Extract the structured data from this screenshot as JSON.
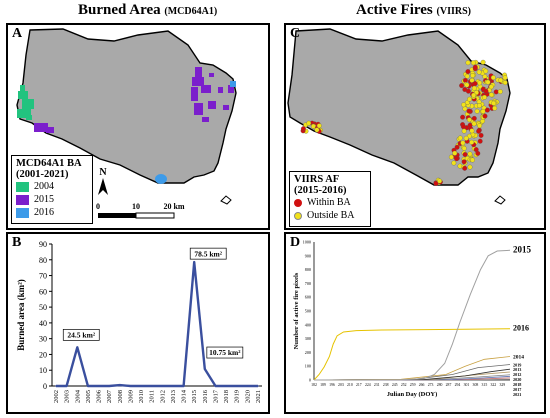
{
  "titles": {
    "left_main": "Burned Area",
    "left_sub": "(MCD64A1)",
    "right_main": "Active Fires",
    "right_sub": "(VIIRS)"
  },
  "panels": {
    "a": "A",
    "b": "B",
    "c": "C",
    "d": "D"
  },
  "legend_ba": {
    "title_line1": "MCD64A1 BA",
    "title_line2": "(2001-2021)",
    "items": [
      {
        "label": "2004",
        "color": "#22c37f"
      },
      {
        "label": "2015",
        "color": "#7b1fcc"
      },
      {
        "label": "2016",
        "color": "#3d9be9"
      }
    ]
  },
  "legend_af": {
    "title_line1": "VIIRS AF",
    "title_line2": "(2015-2016)",
    "items": [
      {
        "label": "Within BA",
        "color": "#d01010"
      },
      {
        "label": "Outside BA",
        "color": "#f2e21a"
      }
    ]
  },
  "map_extras": {
    "north": "N",
    "scale_labels": [
      "0",
      "10",
      "20 km"
    ],
    "land_color": "#a9a9a9"
  },
  "chart_data": [
    {
      "type": "line",
      "panel": "B",
      "ylabel": "Burned area (km²)",
      "xlabel": "",
      "categories": [
        "2002",
        "2003",
        "2004",
        "2005",
        "2006",
        "2007",
        "2008",
        "2009",
        "2010",
        "2011",
        "2012",
        "2013",
        "2014",
        "2015",
        "2016",
        "2017",
        "2018",
        "2019",
        "2020",
        "2021"
      ],
      "values": [
        0,
        0,
        24.5,
        0,
        0,
        0,
        0.6,
        0,
        0,
        0,
        0,
        0,
        0,
        78.5,
        10.75,
        0,
        0,
        0,
        0,
        0
      ],
      "ylim": [
        0,
        90
      ],
      "yticks": [
        0,
        10,
        20,
        30,
        40,
        50,
        60,
        70,
        80,
        90
      ],
      "annotations": [
        {
          "category": "2004",
          "text": "24.5 km²"
        },
        {
          "category": "2015",
          "text": "78.5 km²"
        },
        {
          "category": "2016",
          "text": "10.75 km²"
        }
      ],
      "grid": false,
      "line_color": "#3a4f9e"
    },
    {
      "type": "line",
      "panel": "D",
      "ylabel": "Number of active fire pixels",
      "xlabel": "Julian Day (DOY)",
      "xlim": [
        182,
        335
      ],
      "xticks": [
        182,
        189,
        196,
        203,
        210,
        217,
        224,
        231,
        238,
        245,
        252,
        259,
        266,
        273,
        280,
        287,
        294,
        301,
        308,
        315,
        322,
        329
      ],
      "ylim": [
        0,
        1000
      ],
      "yticks": [
        0,
        100,
        200,
        300,
        400,
        500,
        600,
        700,
        800,
        900,
        1000
      ],
      "series": [
        {
          "name": "2015",
          "color": "#a0a0a0",
          "x": [
            182,
            250,
            268,
            276,
            284,
            290,
            296,
            304,
            312,
            318,
            325,
            335
          ],
          "y": [
            0,
            2,
            10,
            40,
            120,
            260,
            420,
            620,
            800,
            900,
            935,
            940
          ]
        },
        {
          "name": "2016",
          "color": "#e6c300",
          "x": [
            182,
            186,
            190,
            194,
            197,
            200,
            205,
            215,
            235,
            270,
            300,
            335
          ],
          "y": [
            0,
            40,
            95,
            170,
            260,
            320,
            348,
            358,
            362,
            365,
            368,
            372
          ]
        },
        {
          "name": "2014",
          "color": "#c8a040",
          "x": [
            182,
            250,
            285,
            300,
            315,
            335
          ],
          "y": [
            0,
            5,
            40,
            100,
            150,
            170
          ]
        },
        {
          "name": "2019",
          "color": "#6a6a6a",
          "x": [
            182,
            260,
            290,
            310,
            335
          ],
          "y": [
            0,
            5,
            40,
            90,
            112
          ]
        },
        {
          "name": "2013",
          "color": "#303030",
          "x": [
            182,
            270,
            300,
            320,
            335
          ],
          "y": [
            0,
            5,
            30,
            60,
            78
          ]
        },
        {
          "name": "2012",
          "color": "#b59b6a",
          "x": [
            182,
            275,
            305,
            335
          ],
          "y": [
            0,
            5,
            35,
            58
          ]
        },
        {
          "name": "2020",
          "color": "#808080",
          "x": [
            182,
            280,
            310,
            335
          ],
          "y": [
            0,
            4,
            22,
            38
          ]
        },
        {
          "name": "2018",
          "color": "#5a6fb0",
          "x": [
            182,
            290,
            315,
            335
          ],
          "y": [
            0,
            3,
            15,
            26
          ]
        },
        {
          "name": "2017",
          "color": "#c06a6a",
          "x": [
            182,
            300,
            335
          ],
          "y": [
            0,
            3,
            15
          ]
        },
        {
          "name": "2021",
          "color": "#999999",
          "x": [
            182,
            310,
            335
          ],
          "y": [
            0,
            2,
            6
          ]
        }
      ]
    }
  ]
}
